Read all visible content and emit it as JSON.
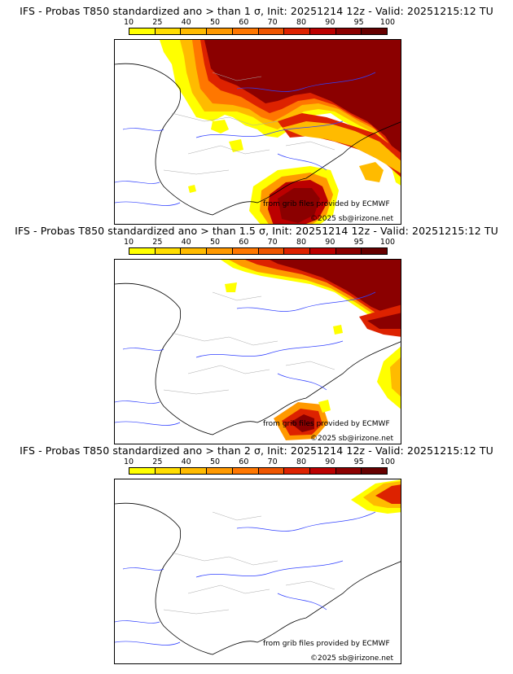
{
  "colors": {
    "scale": [
      "#ffff00",
      "#ffdd00",
      "#ffbb00",
      "#ff9900",
      "#ff7700",
      "#ee5500",
      "#dd2200",
      "#bb0000",
      "#8b0000",
      "#660000"
    ],
    "border": "#000000",
    "river": "#3040ff",
    "admin": "#aaaaaa"
  },
  "colorbar": {
    "ticks": [
      "10",
      "25",
      "40",
      "50",
      "60",
      "70",
      "80",
      "90",
      "95",
      "100"
    ]
  },
  "panels": [
    {
      "title": "IFS - Probas T850  standardized ano > than 1 σ, Init: 20251214 12z - Valid: 20251215:12 TU",
      "credit": "from grib files provided by ECMWF",
      "copyright": "©2025 sb@irizone.net"
    },
    {
      "title": "IFS - Probas T850  standardized ano > than 1.5 σ, Init: 20251214 12z - Valid: 20251215:12 TU",
      "credit": "from grib files provided by ECMWF",
      "copyright": "©2025 sb@irizone.net"
    },
    {
      "title": "IFS - Probas T850  standardized ano > than 2 σ, Init: 20251214 12z - Valid: 20251215:12 TU",
      "credit": "from grib files provided by ECMWF",
      "copyright": "©2025 sb@irizone.net"
    }
  ]
}
